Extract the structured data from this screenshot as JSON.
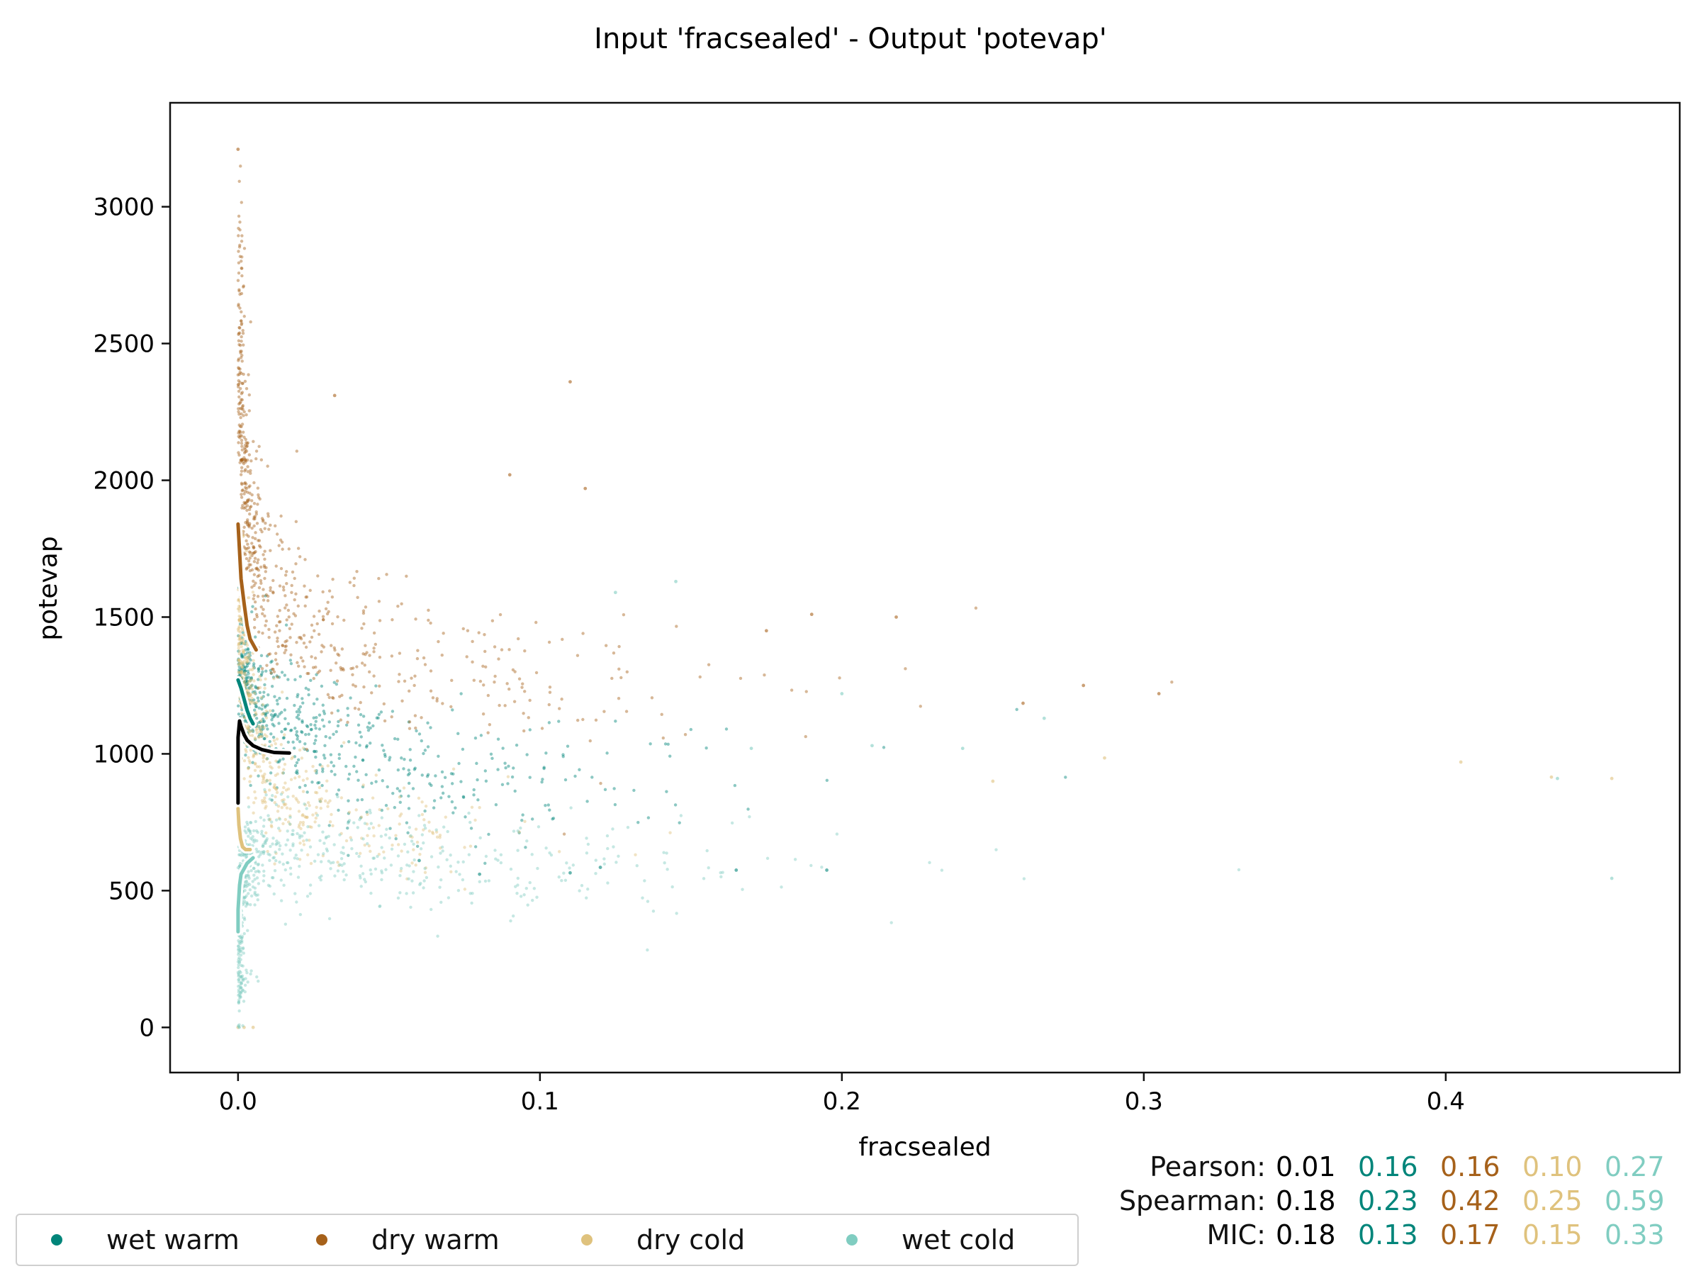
{
  "chart_data": {
    "type": "scatter",
    "title": "Input 'fracsealed' - Output 'potevap'",
    "xlabel": "fracsealed",
    "ylabel": "potevap",
    "xlim": [
      -0.0225,
      0.4775
    ],
    "ylim": [
      -165,
      3380
    ],
    "xticks": [
      0.0,
      0.1,
      0.2,
      0.3,
      0.4
    ],
    "xtick_labels": [
      "0.0",
      "0.1",
      "0.2",
      "0.3",
      "0.4"
    ],
    "yticks": [
      0,
      500,
      1000,
      1500,
      2000,
      2500,
      3000
    ],
    "ytick_labels": [
      "0",
      "500",
      "1000",
      "1500",
      "2000",
      "2500",
      "3000"
    ],
    "grid": false,
    "legend_position": "bottom-left, outside",
    "series": [
      {
        "name": "wet warm",
        "color": "#01857a",
        "core_points": [
          [
            0.0,
            1250
          ],
          [
            0.001,
            1240
          ],
          [
            0.002,
            1230
          ],
          [
            0.003,
            1200
          ],
          [
            0.005,
            1160
          ],
          [
            0.008,
            1120
          ],
          [
            0.012,
            1080
          ],
          [
            0.018,
            1040
          ],
          [
            0.025,
            1000
          ],
          [
            0.035,
            960
          ],
          [
            0.05,
            920
          ],
          [
            0.07,
            880
          ]
        ],
        "outliers": [
          [
            0.165,
            575
          ],
          [
            0.195,
            575
          ],
          [
            0.11,
            565
          ],
          [
            0.12,
            585
          ],
          [
            0.08,
            560
          ],
          [
            0.06,
            610
          ]
        ],
        "trend_line": [
          [
            0.0,
            1270
          ],
          [
            0.001,
            1240
          ],
          [
            0.002,
            1200
          ],
          [
            0.003,
            1160
          ],
          [
            0.004,
            1130
          ],
          [
            0.005,
            1110
          ]
        ]
      },
      {
        "name": "dry warm",
        "color": "#a6611a",
        "core_points": [
          [
            0.0,
            2600
          ],
          [
            0.0,
            2300
          ],
          [
            0.001,
            2100
          ],
          [
            0.002,
            1900
          ],
          [
            0.003,
            1800
          ],
          [
            0.005,
            1700
          ],
          [
            0.008,
            1600
          ],
          [
            0.012,
            1500
          ],
          [
            0.02,
            1420
          ],
          [
            0.03,
            1360
          ],
          [
            0.05,
            1300
          ],
          [
            0.08,
            1250
          ]
        ],
        "outliers": [
          [
            0.11,
            2360
          ],
          [
            0.0,
            3210
          ],
          [
            0.032,
            2310
          ],
          [
            0.09,
            2020
          ],
          [
            0.115,
            1970
          ],
          [
            0.28,
            1250
          ],
          [
            0.305,
            1220
          ],
          [
            0.26,
            1185
          ],
          [
            0.218,
            1500
          ],
          [
            0.19,
            1510
          ],
          [
            0.175,
            1450
          ]
        ],
        "trend_line": [
          [
            0.0,
            1840
          ],
          [
            0.0005,
            1740
          ],
          [
            0.001,
            1640
          ],
          [
            0.002,
            1550
          ],
          [
            0.003,
            1470
          ],
          [
            0.004,
            1420
          ],
          [
            0.006,
            1380
          ]
        ]
      },
      {
        "name": "dry cold",
        "color": "#dfc27d",
        "core_points": [
          [
            0.0,
            1550
          ],
          [
            0.0,
            1400
          ],
          [
            0.001,
            1300
          ],
          [
            0.002,
            1200
          ],
          [
            0.003,
            1100
          ],
          [
            0.005,
            1000
          ],
          [
            0.008,
            900
          ],
          [
            0.012,
            820
          ],
          [
            0.02,
            760
          ],
          [
            0.04,
            700
          ]
        ],
        "outliers": [
          [
            0.0,
            0
          ],
          [
            0.002,
            0
          ],
          [
            0.005,
            0
          ],
          [
            0.455,
            910
          ],
          [
            0.435,
            915
          ],
          [
            0.405,
            970
          ],
          [
            0.287,
            985
          ],
          [
            0.25,
            900
          ]
        ],
        "trend_line": [
          [
            0.0,
            800
          ],
          [
            0.0003,
            740
          ],
          [
            0.0008,
            690
          ],
          [
            0.0015,
            660
          ],
          [
            0.0025,
            650
          ],
          [
            0.004,
            650
          ]
        ]
      },
      {
        "name": "wet cold",
        "color": "#80cdc1",
        "core_points": [
          [
            0.0,
            500
          ],
          [
            0.0,
            300
          ],
          [
            0.0,
            150
          ],
          [
            0.001,
            560
          ],
          [
            0.002,
            600
          ],
          [
            0.004,
            640
          ],
          [
            0.008,
            660
          ],
          [
            0.015,
            640
          ],
          [
            0.025,
            620
          ],
          [
            0.04,
            600
          ],
          [
            0.06,
            590
          ],
          [
            0.09,
            600
          ]
        ],
        "outliers": [
          [
            0.455,
            545
          ],
          [
            0.437,
            910
          ],
          [
            0.267,
            1130
          ],
          [
            0.2,
            1220
          ],
          [
            0.145,
            1630
          ],
          [
            0.125,
            1590
          ],
          [
            0.17,
            1020
          ],
          [
            0.21,
            1030
          ],
          [
            0.24,
            1020
          ]
        ],
        "trend_line": [
          [
            0.0,
            350
          ],
          [
            0.0,
            430
          ],
          [
            0.0005,
            520
          ],
          [
            0.001,
            560
          ],
          [
            0.002,
            580
          ],
          [
            0.003,
            600
          ],
          [
            0.005,
            620
          ]
        ]
      },
      {
        "name": "",
        "color": "#000000",
        "core_points": [],
        "outliers": [],
        "trend_line": [
          [
            0.0,
            820
          ],
          [
            0.0,
            950
          ],
          [
            0.0,
            1060
          ],
          [
            0.0005,
            1120
          ],
          [
            0.001,
            1100
          ],
          [
            0.002,
            1070
          ],
          [
            0.003,
            1050
          ],
          [
            0.005,
            1030
          ],
          [
            0.008,
            1015
          ],
          [
            0.012,
            1005
          ],
          [
            0.017,
            1003
          ]
        ]
      }
    ],
    "stats": [
      {
        "label": "Pearson:",
        "values": [
          "0.01",
          "0.16",
          "0.16",
          "0.10",
          "0.27"
        ]
      },
      {
        "label": "Spearman:",
        "values": [
          "0.18",
          "0.23",
          "0.42",
          "0.25",
          "0.59"
        ]
      },
      {
        "label": "MIC:",
        "values": [
          "0.18",
          "0.13",
          "0.17",
          "0.15",
          "0.33"
        ]
      }
    ],
    "stat_colors": [
      "#000000",
      "#01857a",
      "#a6611a",
      "#dfc27d",
      "#80cdc1"
    ]
  },
  "legend": [
    {
      "label": "wet warm",
      "color": "#01857a"
    },
    {
      "label": "dry warm",
      "color": "#a6611a"
    },
    {
      "label": "dry cold",
      "color": "#dfc27d"
    },
    {
      "label": "wet cold",
      "color": "#80cdc1"
    }
  ]
}
